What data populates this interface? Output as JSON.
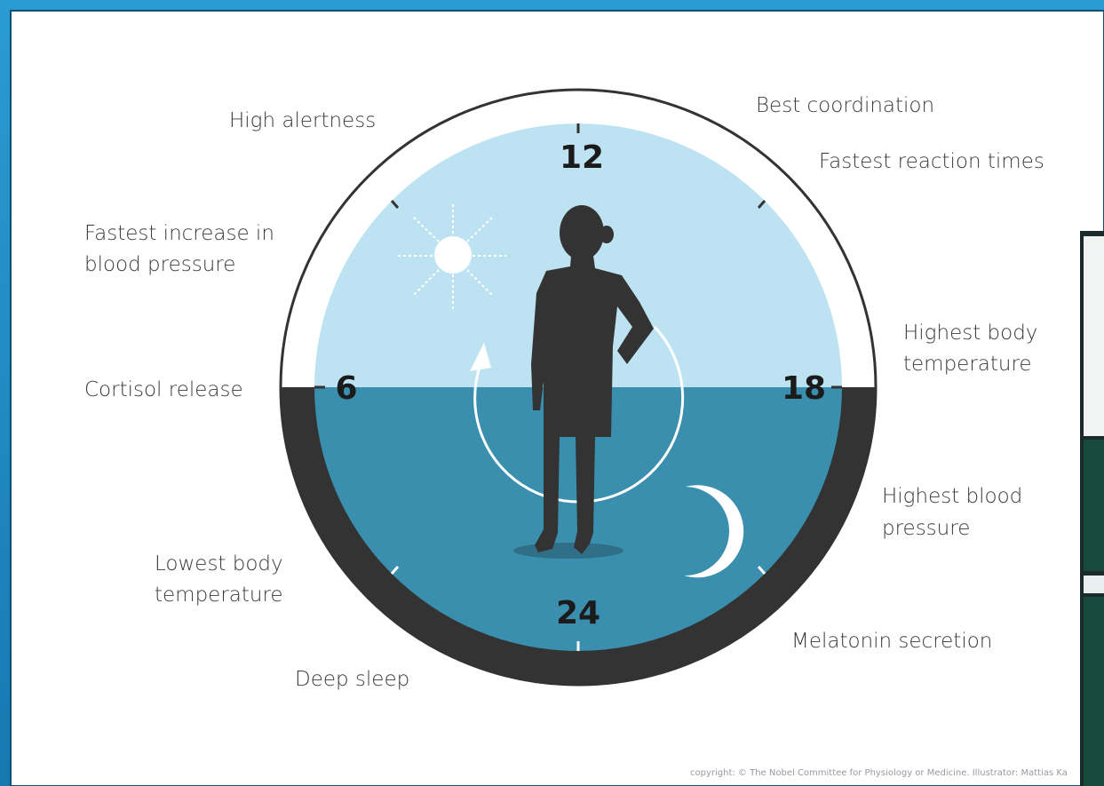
{
  "clock": {
    "hours": {
      "top": "12",
      "left": "6",
      "right": "18",
      "bottom": "24"
    }
  },
  "annotations": [
    {
      "lines": [
        "High alertness"
      ]
    },
    {
      "lines": [
        "Best coordination"
      ]
    },
    {
      "lines": [
        "Fastest reaction times"
      ]
    },
    {
      "lines": [
        "Fastest increase in",
        "blood pressure"
      ]
    },
    {
      "lines": [
        "Cortisol release"
      ]
    },
    {
      "lines": [
        "Highest body",
        "temperature"
      ]
    },
    {
      "lines": [
        "Highest blood",
        "pressure"
      ]
    },
    {
      "lines": [
        "Lowest body",
        "temperature"
      ]
    },
    {
      "lines": [
        "Melatonin secretion"
      ]
    },
    {
      "lines": [
        "Deep sleep"
      ]
    }
  ],
  "copyright": "copyright: © The Nobel Committee for Physiology or Medicine. Illustrator: Mattias Ka"
}
